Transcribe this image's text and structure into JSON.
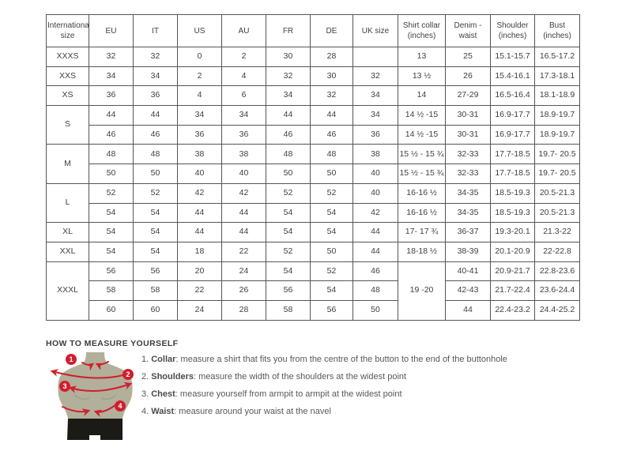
{
  "table": {
    "headers": [
      "International size",
      "EU",
      "IT",
      "US",
      "AU",
      "FR",
      "DE",
      "UK size",
      "Shirt collar (inches)",
      "Denim - waist",
      "Shoulder (inches)",
      "Bust (inches)"
    ],
    "rows": [
      [
        {
          "t": "XXXS",
          "label": true
        },
        {
          "t": "32"
        },
        {
          "t": "32"
        },
        {
          "t": "0"
        },
        {
          "t": "2"
        },
        {
          "t": "30"
        },
        {
          "t": "28"
        },
        {
          "t": ""
        },
        {
          "t": "13"
        },
        {
          "t": "25"
        },
        {
          "t": "15.1-15.7"
        },
        {
          "t": "16.5-17.2"
        }
      ],
      [
        {
          "t": "XXS",
          "label": true
        },
        {
          "t": "34"
        },
        {
          "t": "34"
        },
        {
          "t": "2"
        },
        {
          "t": "4"
        },
        {
          "t": "32"
        },
        {
          "t": "30"
        },
        {
          "t": "32"
        },
        {
          "t": "13 ½"
        },
        {
          "t": "26"
        },
        {
          "t": "15.4-16.1"
        },
        {
          "t": "17.3-18.1"
        }
      ],
      [
        {
          "t": "XS",
          "label": true
        },
        {
          "t": "36"
        },
        {
          "t": "36"
        },
        {
          "t": "4"
        },
        {
          "t": "6"
        },
        {
          "t": "34"
        },
        {
          "t": "32"
        },
        {
          "t": "34"
        },
        {
          "t": "14"
        },
        {
          "t": "27-29"
        },
        {
          "t": "16.5-16.4"
        },
        {
          "t": "18.1-18.9"
        }
      ],
      [
        {
          "t": "S",
          "label": true,
          "rs": 2
        },
        {
          "t": "44"
        },
        {
          "t": "44"
        },
        {
          "t": "34"
        },
        {
          "t": "34"
        },
        {
          "t": "44"
        },
        {
          "t": "44"
        },
        {
          "t": "34"
        },
        {
          "t": "14 ½ -15"
        },
        {
          "t": "30-31"
        },
        {
          "t": "16.9-17.7"
        },
        {
          "t": "18.9-19.7"
        }
      ],
      [
        {
          "t": "46"
        },
        {
          "t": "46"
        },
        {
          "t": "36"
        },
        {
          "t": "36"
        },
        {
          "t": "46"
        },
        {
          "t": "46"
        },
        {
          "t": "36"
        },
        {
          "t": "14 ½ -15"
        },
        {
          "t": "30-31"
        },
        {
          "t": "16.9-17.7"
        },
        {
          "t": "18.9-19.7"
        }
      ],
      [
        {
          "t": "M",
          "label": true,
          "rs": 2
        },
        {
          "t": "48"
        },
        {
          "t": "48"
        },
        {
          "t": "38"
        },
        {
          "t": "38"
        },
        {
          "t": "48"
        },
        {
          "t": "48"
        },
        {
          "t": "38"
        },
        {
          "t": "15 ½ - 15 ¾"
        },
        {
          "t": "32-33"
        },
        {
          "t": "17.7-18.5"
        },
        {
          "t": "19.7- 20.5"
        }
      ],
      [
        {
          "t": "50"
        },
        {
          "t": "50"
        },
        {
          "t": "40"
        },
        {
          "t": "40"
        },
        {
          "t": "50"
        },
        {
          "t": "50"
        },
        {
          "t": "40"
        },
        {
          "t": "15 ½ - 15 ¾"
        },
        {
          "t": "32-33"
        },
        {
          "t": "17.7-18.5"
        },
        {
          "t": "19.7- 20.5"
        }
      ],
      [
        {
          "t": "L",
          "label": true,
          "rs": 2
        },
        {
          "t": "52"
        },
        {
          "t": "52"
        },
        {
          "t": "42"
        },
        {
          "t": "42"
        },
        {
          "t": "52"
        },
        {
          "t": "52"
        },
        {
          "t": "40"
        },
        {
          "t": "16-16 ½"
        },
        {
          "t": "34-35"
        },
        {
          "t": "18.5-19.3"
        },
        {
          "t": "20.5-21.3"
        }
      ],
      [
        {
          "t": "54"
        },
        {
          "t": "54"
        },
        {
          "t": "44"
        },
        {
          "t": "44"
        },
        {
          "t": "54"
        },
        {
          "t": "54"
        },
        {
          "t": "42"
        },
        {
          "t": "16-16 ½"
        },
        {
          "t": "34-35"
        },
        {
          "t": "18.5-19.3"
        },
        {
          "t": "20.5-21.3"
        }
      ],
      [
        {
          "t": "XL",
          "label": true
        },
        {
          "t": "54"
        },
        {
          "t": "54"
        },
        {
          "t": "44"
        },
        {
          "t": "44"
        },
        {
          "t": "54"
        },
        {
          "t": "54"
        },
        {
          "t": "44"
        },
        {
          "t": "17- 17 ¾"
        },
        {
          "t": "36-37"
        },
        {
          "t": "19.3-20.1"
        },
        {
          "t": "21.3-22"
        }
      ],
      [
        {
          "t": "XXL",
          "label": true
        },
        {
          "t": "54"
        },
        {
          "t": "54"
        },
        {
          "t": "18"
        },
        {
          "t": "22"
        },
        {
          "t": "52"
        },
        {
          "t": "50"
        },
        {
          "t": "44"
        },
        {
          "t": "18-18 ½"
        },
        {
          "t": "38-39"
        },
        {
          "t": "20.1-20.9"
        },
        {
          "t": "22-22.8"
        }
      ],
      [
        {
          "t": "XXXL",
          "label": true,
          "rs": 3
        },
        {
          "t": "56"
        },
        {
          "t": "56"
        },
        {
          "t": "20"
        },
        {
          "t": "24"
        },
        {
          "t": "54"
        },
        {
          "t": "52"
        },
        {
          "t": "46"
        },
        {
          "t": "19 -20",
          "rs": 3
        },
        {
          "t": "40-41"
        },
        {
          "t": "20.9-21.7"
        },
        {
          "t": "22.8-23.6"
        }
      ],
      [
        {
          "t": "58"
        },
        {
          "t": "58"
        },
        {
          "t": "22"
        },
        {
          "t": "26"
        },
        {
          "t": "56"
        },
        {
          "t": "54"
        },
        {
          "t": "48"
        },
        {
          "t": "42-43"
        },
        {
          "t": "21.7-22.4"
        },
        {
          "t": "23.6-24.4"
        }
      ],
      [
        {
          "t": "60"
        },
        {
          "t": "60"
        },
        {
          "t": "24"
        },
        {
          "t": "28"
        },
        {
          "t": "58"
        },
        {
          "t": "56"
        },
        {
          "t": "50"
        },
        {
          "t": "44"
        },
        {
          "t": "22.4-23.2"
        },
        {
          "t": "24.4-25.2"
        }
      ]
    ]
  },
  "measure": {
    "heading": "HOW TO MEASURE YOURSELF",
    "steps": [
      {
        "num": "1.",
        "keyword": "Collar",
        "rest": ": measure a shirt that fits you from the centre of the button to the end of the buttonhole"
      },
      {
        "num": "2.",
        "keyword": "Shoulders",
        "rest": ": measure the width of the shoulders at the widest point"
      },
      {
        "num": "3.",
        "keyword": "Chest",
        "rest": ": measure yourself from armpit to armpit at the widest point"
      },
      {
        "num": "4.",
        "keyword": "Waist",
        "rest": ": measure around your waist at the navel"
      }
    ],
    "markers": [
      "1",
      "2",
      "3",
      "4"
    ],
    "colors": {
      "accent_red": "#d01f2f",
      "torso": "#b2b09a",
      "torso_shade": "#9a9883",
      "shorts": "#1b1a16"
    }
  }
}
